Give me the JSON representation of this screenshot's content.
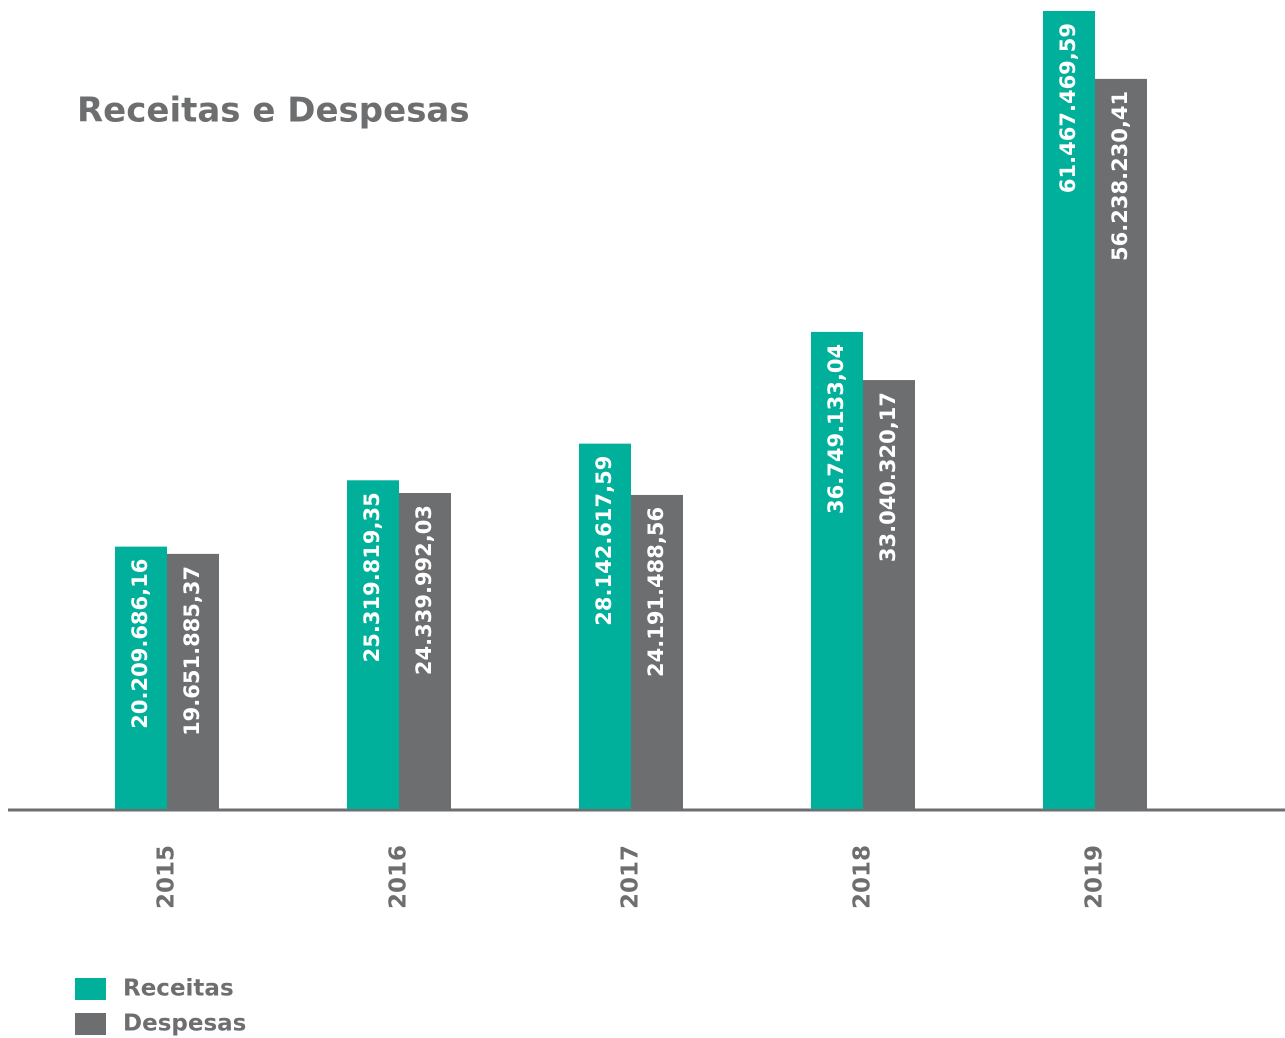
{
  "chart_data": {
    "type": "bar",
    "title": "Receitas e Despesas",
    "categories": [
      "2015",
      "2016",
      "2017",
      "2018",
      "2019"
    ],
    "series": [
      {
        "name": "Receitas",
        "color": "#00b09b",
        "values": [
          20209686.16,
          25319819.35,
          28142617.59,
          36749133.04,
          61467469.59
        ],
        "value_labels": [
          "20.209.686,16",
          "25.319.819,35",
          "28.142.617,59",
          "36.749.133,04",
          "61.467.469,59"
        ]
      },
      {
        "name": "Despesas",
        "color": "#6d6e70",
        "values": [
          19651885.37,
          24339992.03,
          24191488.56,
          33040320.17,
          56238230.41
        ],
        "value_labels": [
          "19.651.885,37",
          "24.339.992,03",
          "24.191.488,56",
          "33.040.320,17",
          "56.238.230,41"
        ]
      }
    ],
    "legend": "bottom-left"
  }
}
